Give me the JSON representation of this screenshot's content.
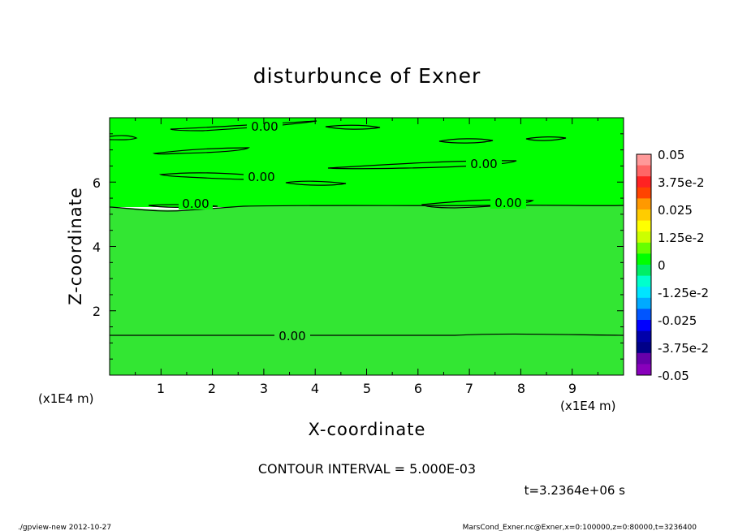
{
  "chart_data": {
    "type": "heatmap",
    "title": "disturbunce of Exner",
    "xlabel": "X-coordinate",
    "ylabel": "Z-coordinate",
    "x_unit_left": "(x1E4 m)",
    "x_unit_right": "(x1E4 m)",
    "xlim": [
      0,
      10
    ],
    "ylim": [
      0,
      8
    ],
    "x_ticks": [
      "1",
      "2",
      "3",
      "4",
      "5",
      "6",
      "7",
      "8",
      "9"
    ],
    "y_ticks": [
      "2",
      "4",
      "6"
    ],
    "fill_color_upper": "#00ff00",
    "fill_color_lower": "#33e633",
    "contour_labels": [
      "0.00",
      "0.00",
      "0.00",
      "0.00",
      "0.00",
      "0.00"
    ],
    "colorbar": {
      "labels": [
        "0.05",
        "3.75e-2",
        "0.025",
        "1.25e-2",
        "0",
        "-1.25e-2",
        "-0.025",
        "-3.75e-2",
        "-0.05"
      ],
      "colors": [
        "#ff9999",
        "#ff6666",
        "#ff2222",
        "#ff4400",
        "#ff9900",
        "#ffcc00",
        "#ffff00",
        "#ccff00",
        "#66ff00",
        "#00ff00",
        "#00ee66",
        "#00ffcc",
        "#00e5ff",
        "#00aaff",
        "#0055ff",
        "#0000ff",
        "#0000aa",
        "#000088",
        "#6600aa",
        "#8800bb"
      ]
    },
    "contour_interval_text": "CONTOUR INTERVAL = 5.000E-03",
    "time_text": "t=3.2364e+06 s"
  },
  "footer": {
    "left": "./gpview-new  2012-10-27",
    "right": "MarsCond_Exner.nc@Exner,x=0:100000,z=0:80000,t=3236400"
  }
}
